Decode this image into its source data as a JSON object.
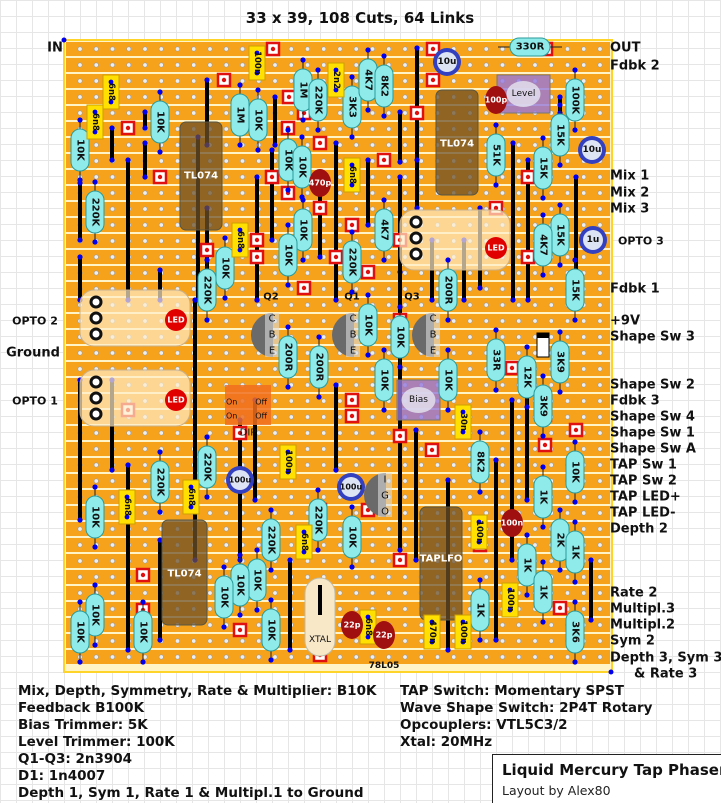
{
  "header": {
    "title": "33 x 39, 108 Cuts, 64 Links"
  },
  "left_labels": [
    "IN",
    "OPTO 2",
    "Ground",
    "OPTO 1"
  ],
  "right_labels": [
    "OUT",
    "Fdbk 2",
    "Mix 1",
    "Mix 2",
    "Mix 3",
    "OPTO 3",
    "Fdbk 1",
    "+9V",
    "Shape Sw 3",
    "Shape Sw 2",
    "Fdbk 3",
    "Shape Sw 4",
    "Shape Sw 1",
    "Shape Sw A",
    "TAP Sw 1",
    "TAP Sw 2",
    "TAP LED+",
    "TAP LED-",
    "Depth 2",
    "Rate 2",
    "Multipl.3",
    "Multipl.2",
    "Sym 2",
    "Depth 3, Sym 3",
    "& Rate 3"
  ],
  "resistors": [
    "330R",
    "10K",
    "220K",
    "10K",
    "1M",
    "10K",
    "1M",
    "220K",
    "3K3",
    "4K7",
    "8K2",
    "100K",
    "10K",
    "10K",
    "10K",
    "10K",
    "220K",
    "4K7",
    "10K",
    "220K",
    "51K",
    "15K",
    "15K",
    "15K",
    "4K7",
    "15K",
    "200R",
    "200R",
    "200R",
    "10K",
    "10K",
    "10K",
    "10K",
    "33R",
    "12K",
    "3K9",
    "3K9",
    "8K2",
    "220K",
    "220K",
    "10K",
    "10K",
    "1K",
    "2K",
    "1K",
    "1K",
    "1K",
    "1K",
    "220K",
    "220K",
    "10K",
    "10K",
    "10K",
    "10K",
    "10K",
    "10K",
    "10K",
    "10K",
    "3K6"
  ],
  "film_caps": [
    "100n",
    "2n2",
    "6n8",
    "6n8",
    "6n8",
    "6n8",
    "6n8",
    "6n8",
    "100n",
    "30n",
    "100n",
    "100n",
    "6n8",
    "6n8",
    "470n",
    "100n"
  ],
  "ceramic_caps": [
    "470p",
    "100p",
    "100n",
    "22p",
    "22p"
  ],
  "electrolytics": [
    "10u",
    "10u",
    "1u",
    "100u",
    "100u"
  ],
  "ics": [
    "TL074",
    "TL074",
    "TL074",
    "TAPLFO"
  ],
  "trimmers": [
    "Level",
    "Bias"
  ],
  "transistors": [
    {
      "name": "Q2",
      "pins": [
        "C",
        "B",
        "E"
      ]
    },
    {
      "name": "Q1",
      "pins": [
        "C",
        "B",
        "E"
      ]
    },
    {
      "name": "Q3",
      "pins": [
        "C",
        "B",
        "E"
      ]
    }
  ],
  "igo_pins": [
    "I",
    "G",
    "O"
  ],
  "leds": [
    "LED",
    "LED",
    "LED"
  ],
  "dip": {
    "label": "DIP",
    "switch_labels": [
      "On",
      "Off",
      "On",
      "Off"
    ]
  },
  "xtal": "XTAL",
  "regulator": "78L05",
  "notes_left": [
    "Mix, Depth, Symmetry, Rate & Multiplier: B10K",
    "Feedback B100K",
    "Bias Trimmer: 5K",
    "Level Trimmer: 100K",
    "Q1-Q3: 2n3904",
    "D1: 1n4007",
    "Depth 1, Sym 1, Rate 1 & Multipl.1 to Ground"
  ],
  "notes_right": [
    "TAP Switch: Momentary SPST",
    "Wave Shape Switch: 2P4T Rotary",
    "Opcouplers: VTL5C3/2",
    "Xtal: 20MHz"
  ],
  "title_box": {
    "title": "Liquid Mercury Tap Phaser",
    "subtitle": "Layout by Alex80"
  },
  "colors": {
    "strip": "#F7A21B",
    "board_edge": "#FFD42A",
    "resistor": "#8FEAEA",
    "film_cap": "#FFE000",
    "ceramic_cap": "#A01010",
    "electrolytic": "#3340C0",
    "link": "#000000",
    "cut": "#E01010",
    "wire_dot": "#0000EE"
  }
}
